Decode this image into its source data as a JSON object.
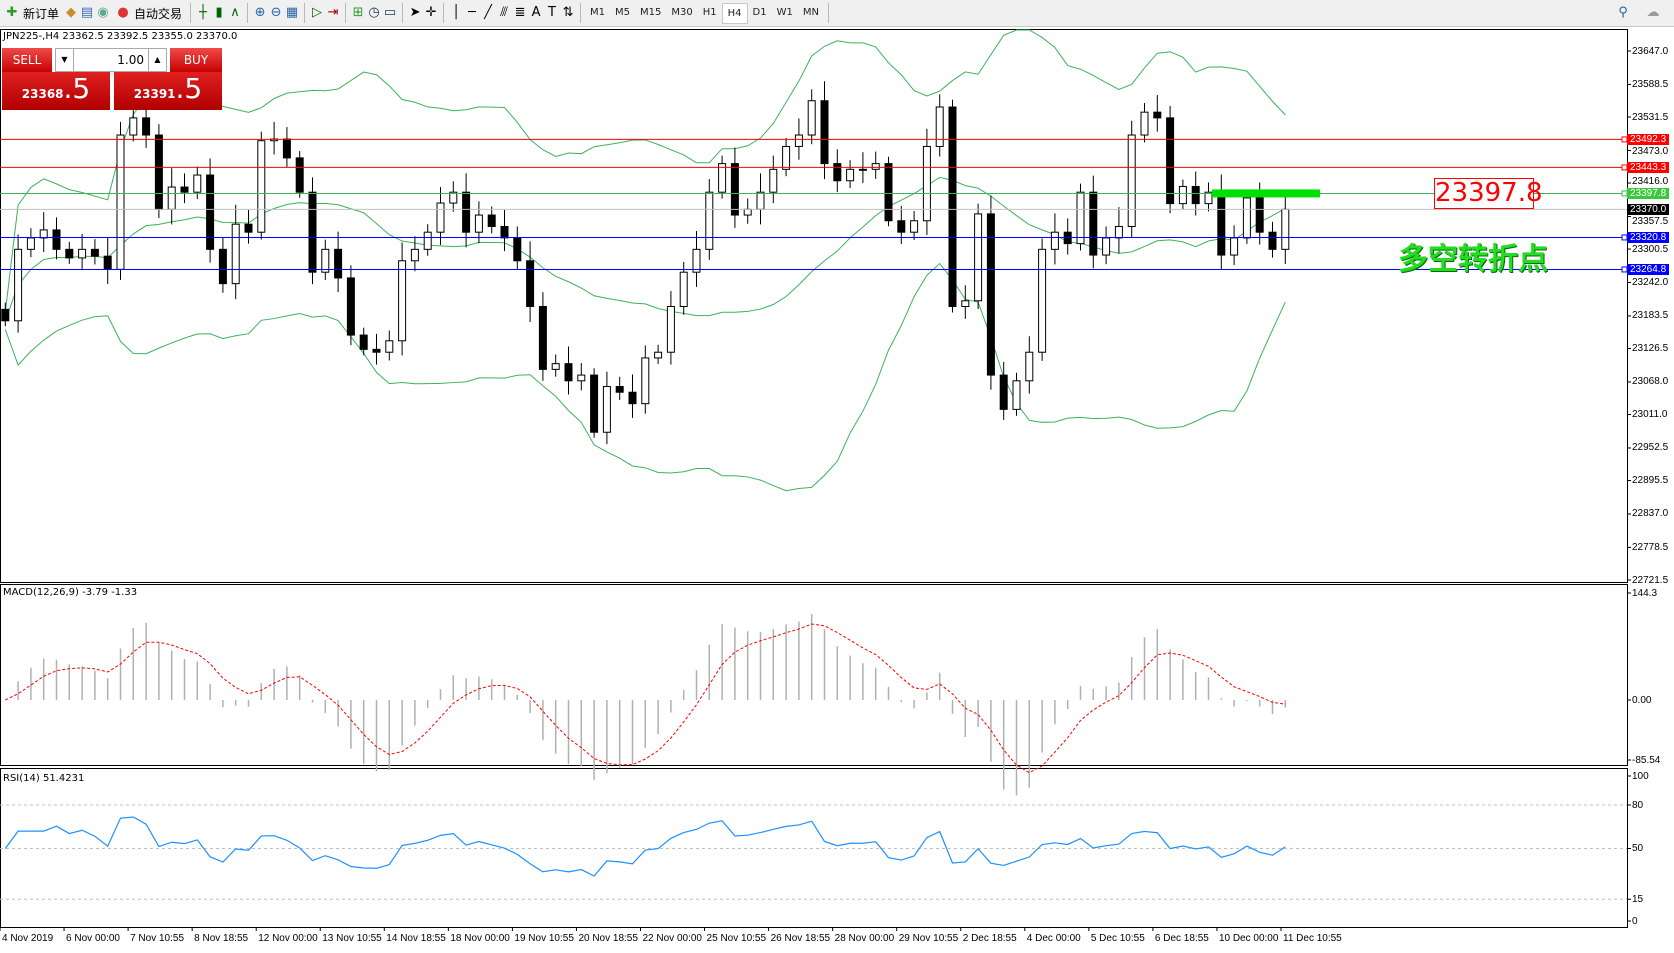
{
  "toolbar": {
    "new_order": "新订单",
    "auto_trading": "自动交易",
    "icons": [
      "new-order-icon",
      "market-watch-icon",
      "data-window-icon",
      "navigator-icon",
      "auto-trading-icon",
      "bar-chart-icon",
      "candlestick-icon",
      "line-chart-icon",
      "zoom-in-icon",
      "zoom-out-icon",
      "tile-windows-icon",
      "autoscroll-icon",
      "chart-shift-icon",
      "indicators-icon",
      "periods-icon",
      "templates-icon",
      "cursor-icon",
      "crosshair-icon",
      "vertical-line-icon",
      "horizontal-line-icon",
      "trendline-icon",
      "fibonacci-icon",
      "fibo-fan-icon",
      "text-icon",
      "text-label-icon",
      "arrows-icon"
    ],
    "timeframes": [
      "M1",
      "M5",
      "M15",
      "M30",
      "H1",
      "H4",
      "D1",
      "W1",
      "MN"
    ],
    "selected_timeframe": "H4"
  },
  "chart_header": "JPN225-,H4  23362.5 23392.5 23355.0 23370.0",
  "trade_panel": {
    "sell": "SELL",
    "buy": "BUY",
    "lots": "1.00",
    "sell_price_main": "23368",
    "sell_price_big": ".5",
    "buy_price_main": "23391",
    "buy_price_big": ".5"
  },
  "annotations": {
    "level_box": "23397.8",
    "pivot_text": "多空转折点"
  },
  "macd": {
    "label": "MACD(12,26,9) -3.79 -1.33",
    "axis": [
      "144.3",
      "0.00",
      "-85.54"
    ]
  },
  "rsi": {
    "label": "RSI(14) 51.4231",
    "axis": [
      "100",
      "80",
      "50",
      "15",
      "0"
    ]
  },
  "colors": {
    "bull": "#ffffff",
    "bear": "#000000",
    "bands": "#3cb35a",
    "resistance": "#ff0000",
    "support": "#0000ff",
    "pivot": "#00e000",
    "macd_signal": "#ff0000",
    "rsi": "#1e90ff"
  },
  "chart_data": {
    "type": "candlestick",
    "symbol": "JPN225-",
    "timeframe": "H4",
    "ylim": [
      22721.5,
      23647.0
    ],
    "price_ticks": [
      "23647.0",
      "23588.5",
      "23531.5",
      "23473.0",
      "23416.0",
      "23357.5",
      "23300.5",
      "23242.0",
      "23183.5",
      "23126.5",
      "23068.0",
      "23011.0",
      "22952.5",
      "22895.5",
      "22837.0",
      "22778.5",
      "22721.5"
    ],
    "time_labels": [
      "4 Nov 2019",
      "6 Nov 00:00",
      "7 Nov 10:55",
      "8 Nov 18:55",
      "12 Nov 00:00",
      "13 Nov 10:55",
      "14 Nov 18:55",
      "18 Nov 00:00",
      "19 Nov 10:55",
      "20 Nov 18:55",
      "22 Nov 00:00",
      "25 Nov 10:55",
      "26 Nov 18:55",
      "28 Nov 00:00",
      "29 Nov 10:55",
      "2 Dec 18:55",
      "4 Dec 00:00",
      "5 Dec 10:55",
      "6 Dec 18:55",
      "10 Dec 00:00",
      "11 Dec 10:55"
    ],
    "levels": [
      {
        "price": 23492.3,
        "label": "23492.3",
        "kind": "resistance"
      },
      {
        "price": 23443.3,
        "label": "23443.3",
        "kind": "resistance"
      },
      {
        "price": 23397.8,
        "label": "23397.8",
        "kind": "pivot"
      },
      {
        "price": 23320.8,
        "label": "23320.8",
        "kind": "support"
      },
      {
        "price": 23264.8,
        "label": "23264.8",
        "kind": "support"
      }
    ],
    "current_price": {
      "price": 23370.0,
      "label": "23370.0"
    },
    "closes": [
      23175,
      23300,
      23320,
      23334,
      23300,
      23285,
      23300,
      23288,
      23265,
      23500,
      23530,
      23500,
      23370,
      23409,
      23400,
      23430,
      23300,
      23240,
      23344,
      23330,
      23490,
      23493,
      23460,
      23400,
      23260,
      23300,
      23250,
      23150,
      23125,
      23120,
      23140,
      23280,
      23300,
      23330,
      23381,
      23400,
      23330,
      23360,
      23340,
      23320,
      23280,
      23200,
      23090,
      23100,
      23070,
      23080,
      22980,
      23060,
      23050,
      23030,
      23110,
      23120,
      23200,
      23260,
      23300,
      23400,
      23450,
      23360,
      23370,
      23400,
      23440,
      23480,
      23500,
      23560,
      23450,
      23420,
      23440,
      23440,
      23450,
      23350,
      23330,
      23350,
      23480,
      23549,
      23200,
      23210,
      23362,
      23080,
      23020,
      23070,
      23120,
      23300,
      23330,
      23310,
      23400,
      23290,
      23320,
      23340,
      23500,
      23540,
      23530,
      23380,
      23410,
      23380,
      23400,
      23290,
      23320,
      23390,
      23330,
      23300,
      23370
    ]
  }
}
